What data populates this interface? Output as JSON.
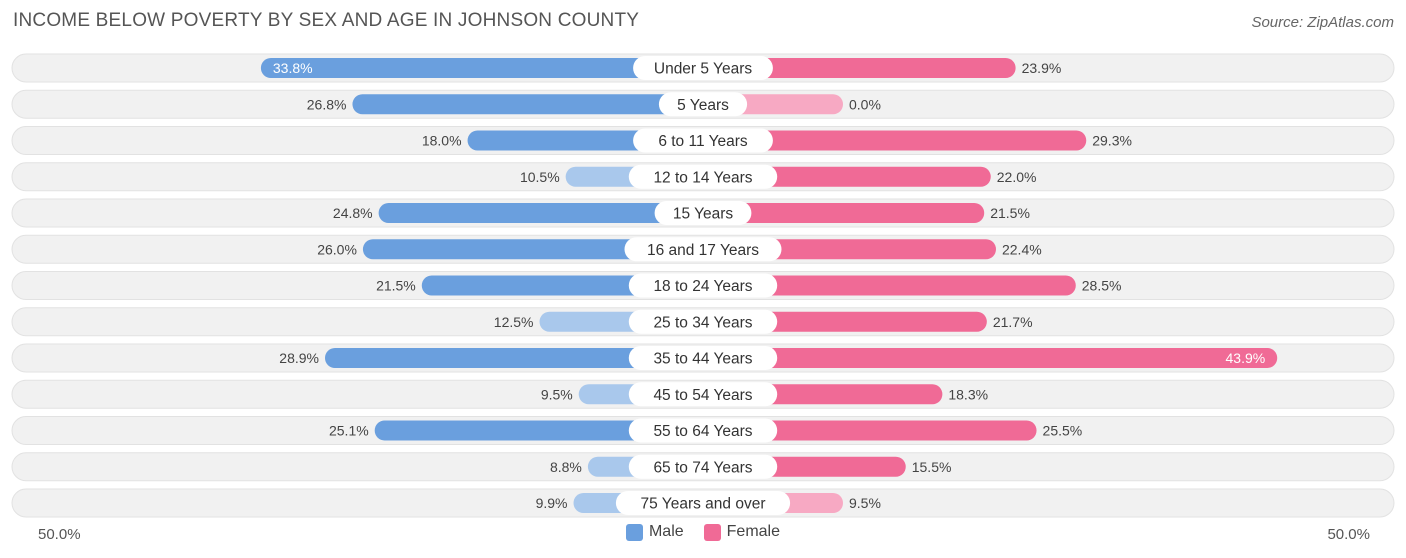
{
  "title": "INCOME BELOW POVERTY BY SEX AND AGE IN JOHNSON COUNTY",
  "source": "Source: ZipAtlas.com",
  "colors": {
    "male_strong": "#6a9fde",
    "male_light": "#a9c8ec",
    "female_strong": "#f06a96",
    "female_light": "#f7a9c3",
    "track": "#f1f1f1"
  },
  "chart_data": {
    "type": "bar",
    "orientation": "horizontal-diverging",
    "title": "INCOME BELOW POVERTY BY SEX AND AGE IN JOHNSON COUNTY",
    "categories": [
      "Under 5 Years",
      "5 Years",
      "6 to 11 Years",
      "12 to 14 Years",
      "15 Years",
      "16 and 17 Years",
      "18 to 24 Years",
      "25 to 34 Years",
      "35 to 44 Years",
      "45 to 54 Years",
      "55 to 64 Years",
      "65 to 74 Years",
      "75 Years and over"
    ],
    "series": [
      {
        "name": "Male",
        "values": [
          33.8,
          26.8,
          18.0,
          10.5,
          24.8,
          26.0,
          21.5,
          12.5,
          28.9,
          9.5,
          25.1,
          8.8,
          9.9
        ]
      },
      {
        "name": "Female",
        "values": [
          23.9,
          0.0,
          29.3,
          22.0,
          21.5,
          22.4,
          28.5,
          21.7,
          43.9,
          18.3,
          25.5,
          15.5,
          9.5
        ]
      }
    ],
    "value_labels": {
      "male": [
        "33.8%",
        "26.8%",
        "18.0%",
        "10.5%",
        "24.8%",
        "26.0%",
        "21.5%",
        "12.5%",
        "28.9%",
        "9.5%",
        "25.1%",
        "8.8%",
        "9.9%"
      ],
      "female": [
        "23.9%",
        "0.0%",
        "29.3%",
        "22.0%",
        "21.5%",
        "22.4%",
        "28.5%",
        "21.7%",
        "43.9%",
        "18.3%",
        "25.5%",
        "15.5%",
        "9.5%"
      ]
    },
    "xlim": [
      -50,
      50
    ],
    "axis_min_label": "50.0%",
    "axis_max_label": "50.0%",
    "legend": [
      "Male",
      "Female"
    ],
    "legend_position": "bottom-center"
  }
}
